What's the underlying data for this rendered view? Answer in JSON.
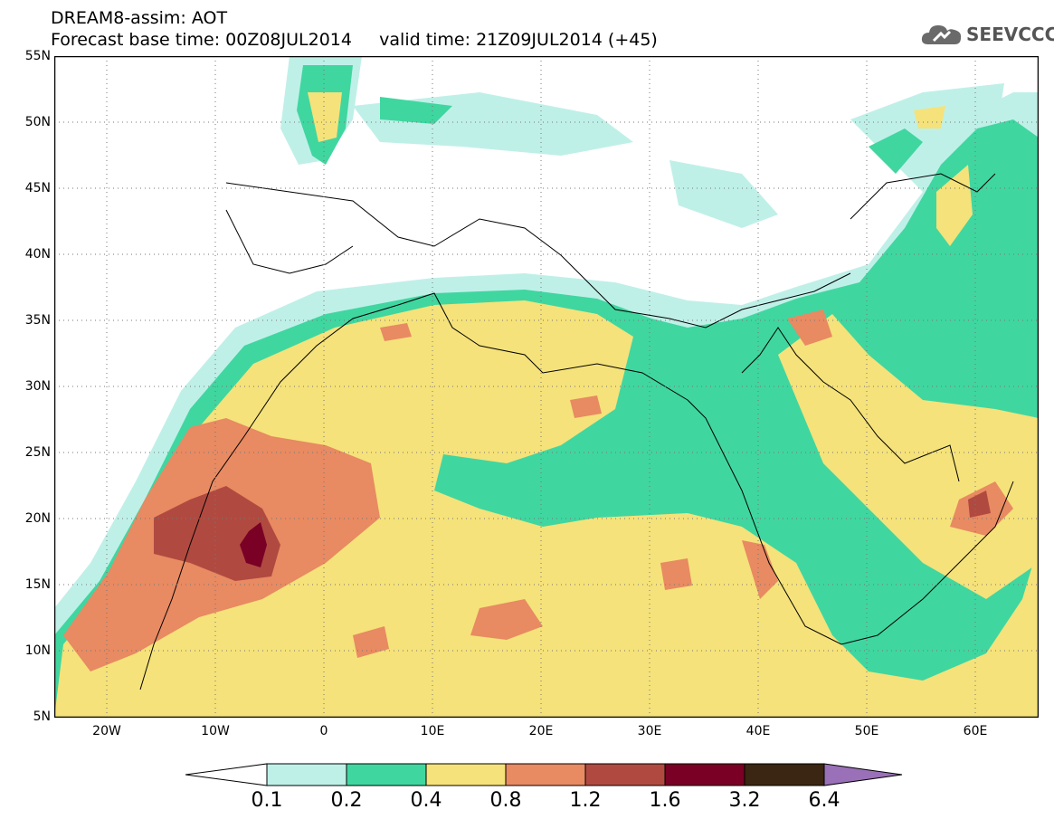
{
  "title": {
    "line1": "DREAM8-assim: AOT",
    "line2": "Forecast base time: 00Z08JUL2014     valid time: 21Z09JUL2014 (+45)"
  },
  "logo": {
    "text": "SEEVCCC",
    "icon": "cloud-icon"
  },
  "map": {
    "lon_range": [
      -25,
      65
    ],
    "lat_range": [
      5,
      55
    ],
    "grid": "dotted",
    "y_ticks": [
      "55N",
      "50N",
      "45N",
      "40N",
      "35N",
      "30N",
      "25N",
      "20N",
      "15N",
      "10N",
      "5N"
    ],
    "x_ticks": [
      "20W",
      "10W",
      "0",
      "10E",
      "20E",
      "30E",
      "40E",
      "50E",
      "60E"
    ]
  },
  "colorbar": {
    "labels": [
      "0.1",
      "0.2",
      "0.4",
      "0.8",
      "1.2",
      "1.6",
      "3.2",
      "6.4"
    ],
    "colors": [
      "#bff0e8",
      "#40d6a0",
      "#f5e27a",
      "#e88a62",
      "#b04a40",
      "#7a0025",
      "#3a2612",
      "#9a70b8"
    ]
  }
}
